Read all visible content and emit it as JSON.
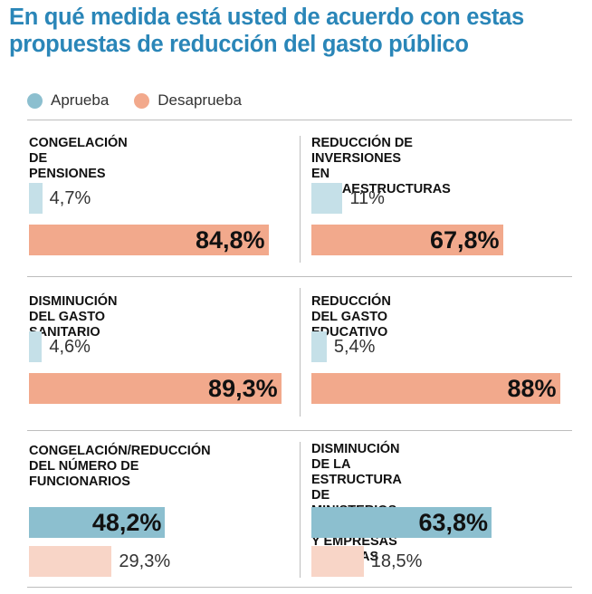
{
  "title": "En qué medida está usted de acuerdo con estas propuestas de reducción del gasto público",
  "legend": [
    {
      "label": "Aprueba",
      "color": "#8cbfcf"
    },
    {
      "label": "Desaprueba",
      "color": "#f2a98c"
    }
  ],
  "chart_data": [
    {
      "type": "bar",
      "title": "CONGELACIÓN DE PENSIONES",
      "series": [
        {
          "name": "Aprueba",
          "value": 4.7,
          "label": "4,7%"
        },
        {
          "name": "Desaprueba",
          "value": 84.8,
          "label": "84,8%"
        }
      ]
    },
    {
      "type": "bar",
      "title": "REDUCCIÓN DE INVERSIONES EN INFRAESTRUCTURAS",
      "title_lines": [
        "REDUCCIÓN DE INVERSIONES",
        "EN INFRAESTRUCTURAS"
      ],
      "series": [
        {
          "name": "Aprueba",
          "value": 11,
          "label": "11%"
        },
        {
          "name": "Desaprueba",
          "value": 67.8,
          "label": "67,8%"
        }
      ]
    },
    {
      "type": "bar",
      "title": "DISMINUCIÓN DEL GASTO SANITARIO",
      "series": [
        {
          "name": "Aprueba",
          "value": 4.6,
          "label": "4,6%"
        },
        {
          "name": "Desaprueba",
          "value": 89.3,
          "label": "89,3%"
        }
      ]
    },
    {
      "type": "bar",
      "title": "REDUCCIÓN DEL GASTO EDUCATIVO",
      "series": [
        {
          "name": "Aprueba",
          "value": 5.4,
          "label": "5,4%"
        },
        {
          "name": "Desaprueba",
          "value": 88,
          "label": "88%"
        }
      ]
    },
    {
      "type": "bar",
      "title": "CONGELACIÓN/REDUCCIÓN DEL NÚMERO DE FUNCIONARIOS",
      "title_lines": [
        "CONGELACIÓN/REDUCCIÓN",
        "DEL NÚMERO DE FUNCIONARIOS"
      ],
      "series": [
        {
          "name": "Aprueba",
          "value": 48.2,
          "label": "48,2%"
        },
        {
          "name": "Desaprueba",
          "value": 29.3,
          "label": "29,3%"
        }
      ]
    },
    {
      "type": "bar",
      "title": "DISMINUCIÓN DE LA ESTRUCTURA DE MINISTERIOS, AUTONOMÍAS Y EMPRESAS PÚBLICAS",
      "title_lines": [
        "DISMINUCIÓN DE LA ESTRUCTURA",
        "DE MINISTERIOS, AUTONOMÍAS",
        "Y EMPRESAS PÚBLICAS"
      ],
      "series": [
        {
          "name": "Aprueba",
          "value": 63.8,
          "label": "63,8%"
        },
        {
          "name": "Desaprueba",
          "value": 18.5,
          "label": "18,5%"
        }
      ]
    }
  ],
  "colors": {
    "approve": "#8cbfcf",
    "approve_light": "#c5e0e8",
    "disapprove": "#f2a98c",
    "disapprove_light": "#f8d5c7"
  }
}
